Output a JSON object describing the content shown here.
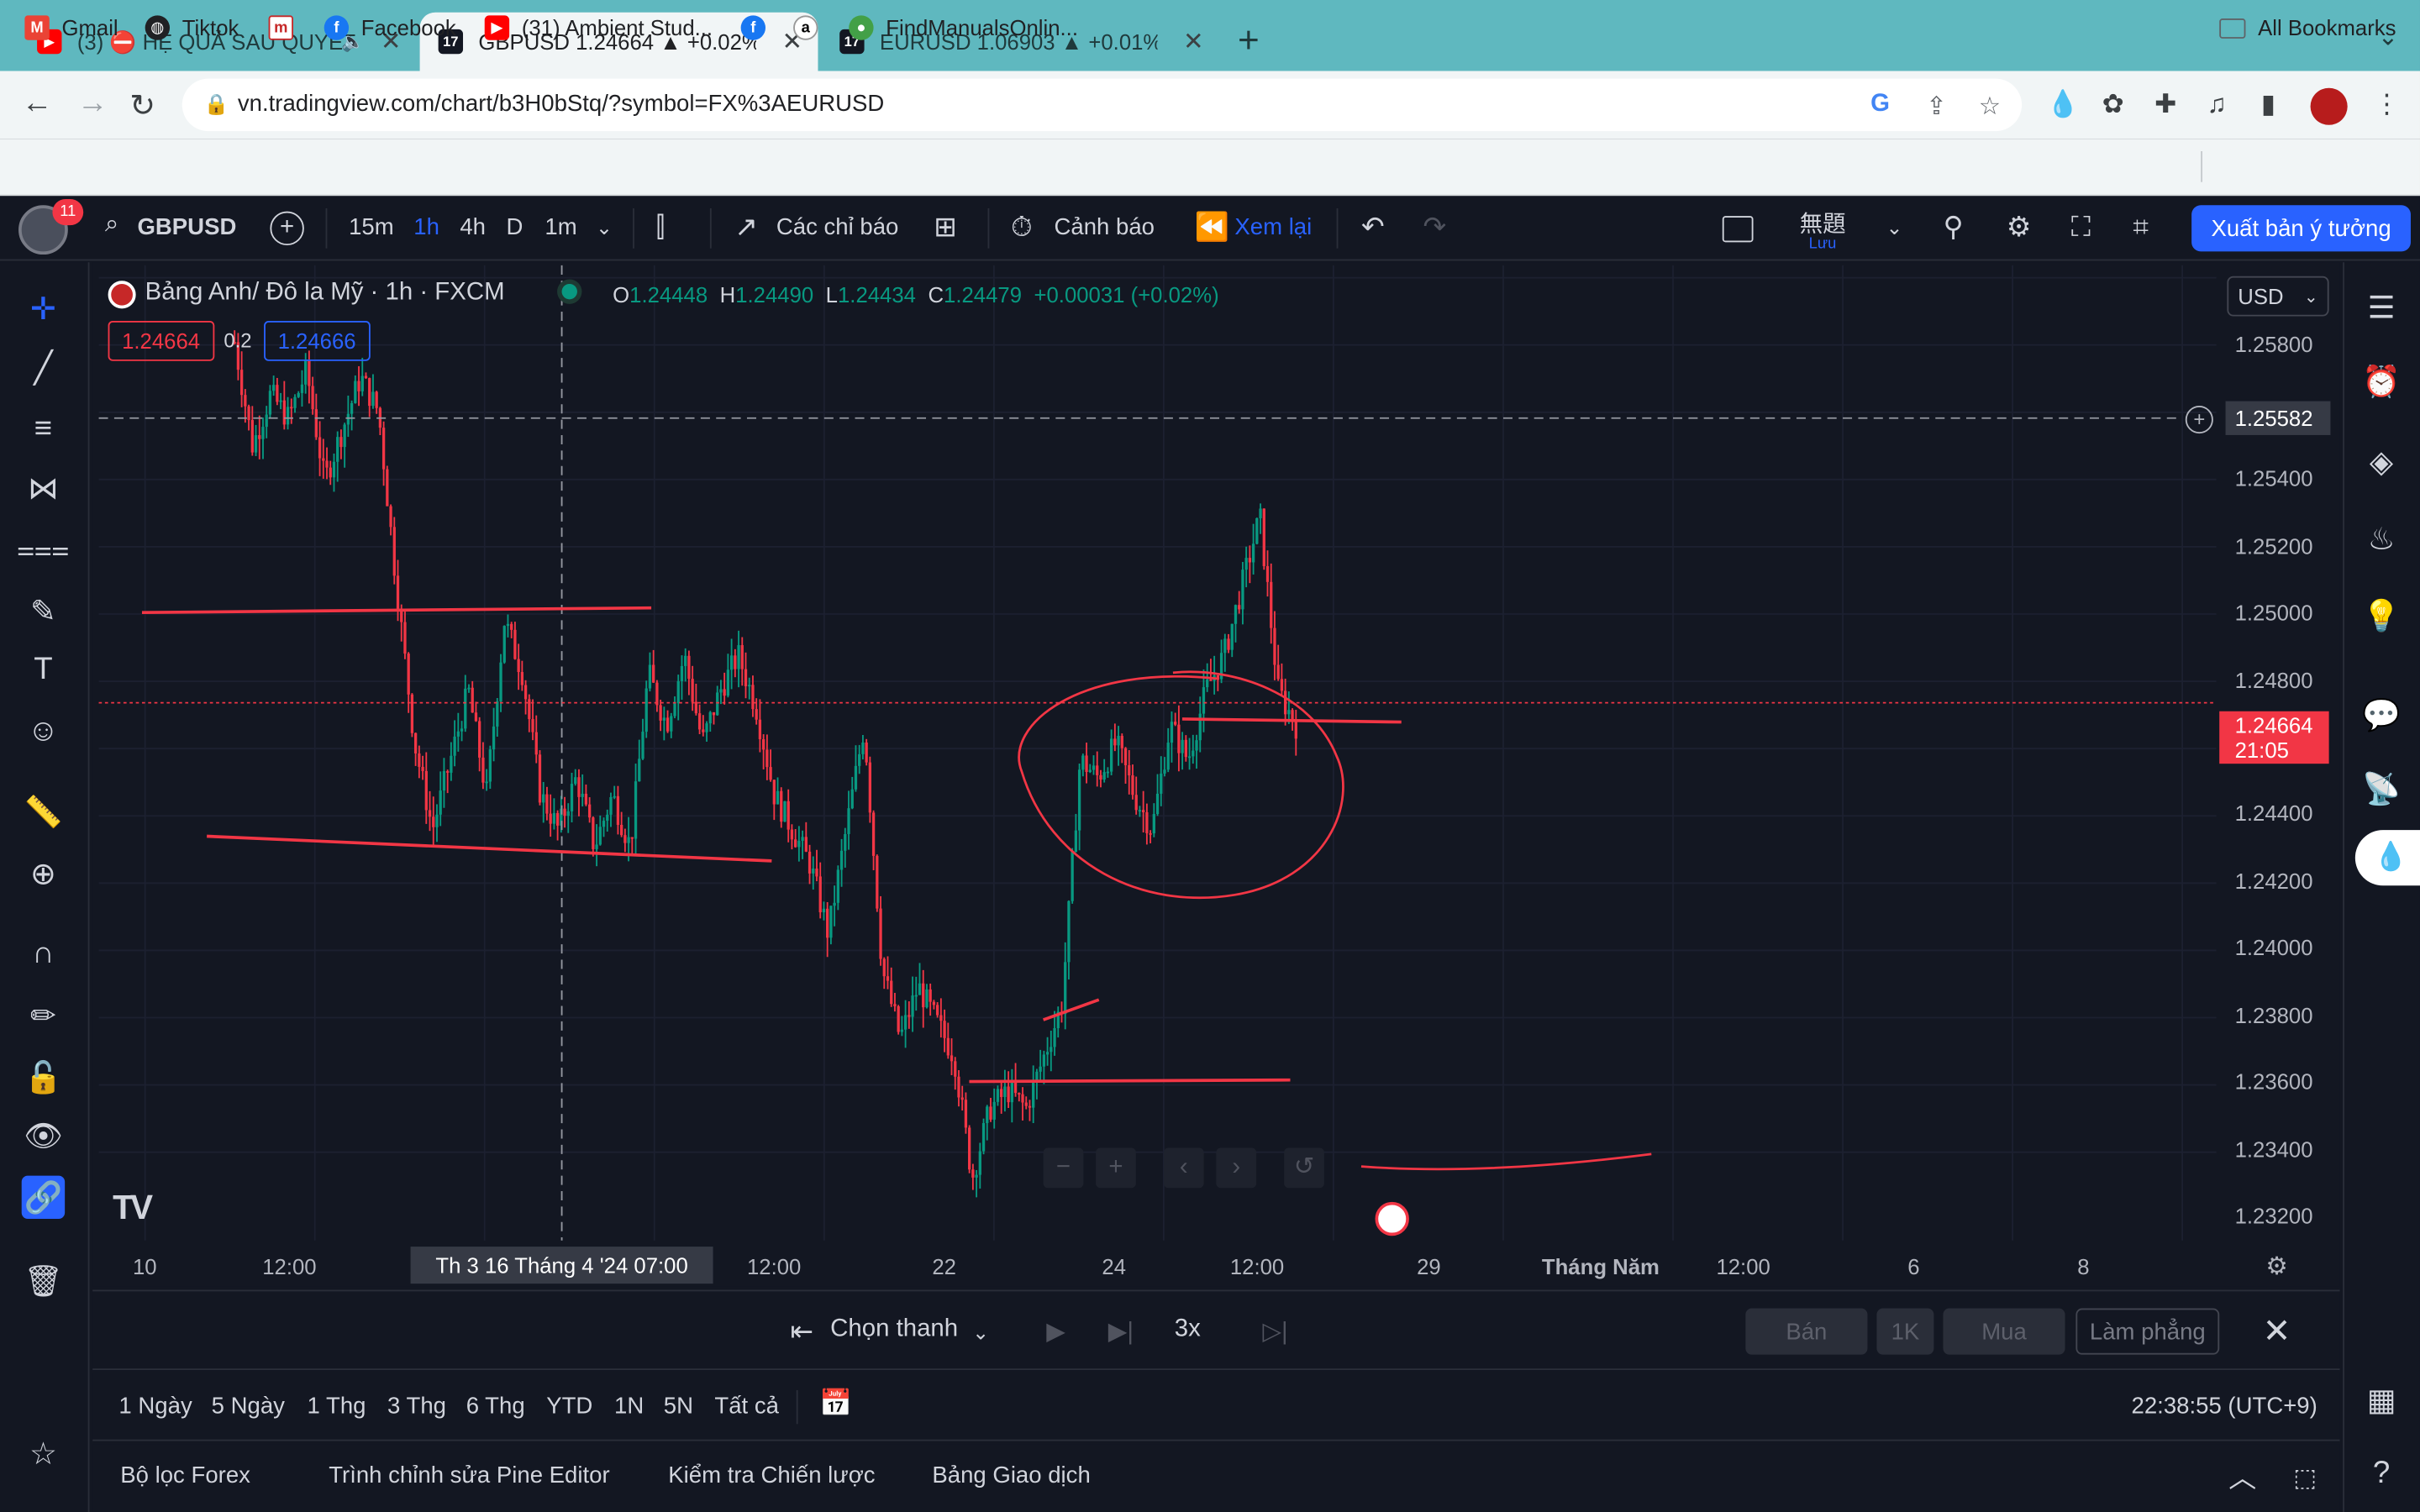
{
  "browser": {
    "tabs": [
      {
        "title": "(3) ⛔ HỆ QUẢ SAU QUYẾT",
        "icon": "youtube-icon"
      },
      {
        "title": "GBPUSD 1.24664 ▲ +0.02% 無",
        "icon": "tradingview-icon"
      },
      {
        "title": "EURUSD 1.06903 ▲ +0.01% 無",
        "icon": "tradingview-icon"
      }
    ],
    "url": "vn.tradingview.com/chart/b3H0bStq/?symbol=FX%3AEURUSD",
    "bookmarks": [
      "Gmail",
      "Tiktok",
      "Facebook",
      "(31) Ambient Stud...",
      "FindManualsOnlin..."
    ],
    "all_bookmarks": "All Bookmarks"
  },
  "tv": {
    "notification_count": "11",
    "symbol": "GBPUSD",
    "intervals": [
      "15m",
      "1h",
      "4h",
      "D",
      "1m"
    ],
    "active_interval": "1h",
    "indicators": "Các chỉ báo",
    "alerts": "Cảnh báo",
    "replay": "Xem lại",
    "layout_name": "無題",
    "layout_save": "Lưu",
    "publish": "Xuất bản ý tưởng"
  },
  "legend": {
    "title": "Bảng Anh/ Đô la Mỹ · 1h · FXCM",
    "o_label": "O",
    "o": "1.24448",
    "h_label": "H",
    "h": "1.24490",
    "l_label": "L",
    "l": "1.24434",
    "c_label": "C",
    "c": "1.24479",
    "change": "+0.00031 (+0.02%)",
    "bid": "1.24664",
    "spread": "0.2",
    "ask": "1.24666"
  },
  "chart": {
    "currency": "USD",
    "crosshair_price": "1.25582",
    "current_price": "1.24664",
    "countdown": "21:05",
    "crosshair_time": "Th 3 16 Tháng 4 '24   07:00",
    "price_ticks": [
      "1.25800",
      "1.25400",
      "1.25200",
      "1.25000",
      "1.24800",
      "1.24400",
      "1.24200",
      "1.24000",
      "1.23800",
      "1.23600",
      "1.23400",
      "1.23200"
    ],
    "time_ticks": [
      "10",
      "12:00",
      "12:00",
      "22",
      "24",
      "12:00",
      "29",
      "Tháng Năm",
      "12:00",
      "6",
      "8"
    ]
  },
  "chart_data": {
    "type": "candlestick",
    "symbol": "GBPUSD",
    "timeframe": "1h",
    "ylim": [
      1.2312,
      1.2592
    ],
    "close_series": [
      1.257,
      1.254,
      1.2555,
      1.2548,
      1.2562,
      1.253,
      1.2545,
      1.256,
      1.255,
      1.25,
      1.2455,
      1.243,
      1.245,
      1.247,
      1.244,
      1.249,
      1.2475,
      1.244,
      1.243,
      1.2445,
      1.2425,
      1.244,
      1.2425,
      1.2475,
      1.246,
      1.248,
      1.2455,
      1.247,
      1.248,
      1.2465,
      1.244,
      1.243,
      1.242,
      1.24,
      1.243,
      1.246,
      1.239,
      1.237,
      1.2385,
      1.2375,
      1.2365,
      1.233,
      1.235,
      1.2355,
      1.235,
      1.2365,
      1.238,
      1.245,
      1.2445,
      1.2455,
      1.244,
      1.243,
      1.246,
      1.245,
      1.247,
      1.248,
      1.25,
      1.252,
      1.247,
      1.246
    ],
    "annotations": [
      "horizontal-line",
      "horizontal-line",
      "horizontal-line",
      "horizontal-line",
      "circle",
      "trend-line"
    ]
  },
  "replay_bar": {
    "select_bar": "Chọn thanh",
    "speed": "3x",
    "sell": "Bán",
    "qty": "1K",
    "buy": "Mua",
    "flatten": "Làm phẳng"
  },
  "ranges": [
    "1 Ngày",
    "5 Ngày",
    "1 Thg",
    "3 Thg",
    "6 Thg",
    "YTD",
    "1N",
    "5N",
    "Tất cả"
  ],
  "clock": "22:38:55 (UTC+9)",
  "bottom_tabs": [
    "Bộ lọc Forex",
    "Trình chỉnh sửa Pine Editor",
    "Kiểm tra Chiến lược",
    "Bảng Giao dịch"
  ]
}
